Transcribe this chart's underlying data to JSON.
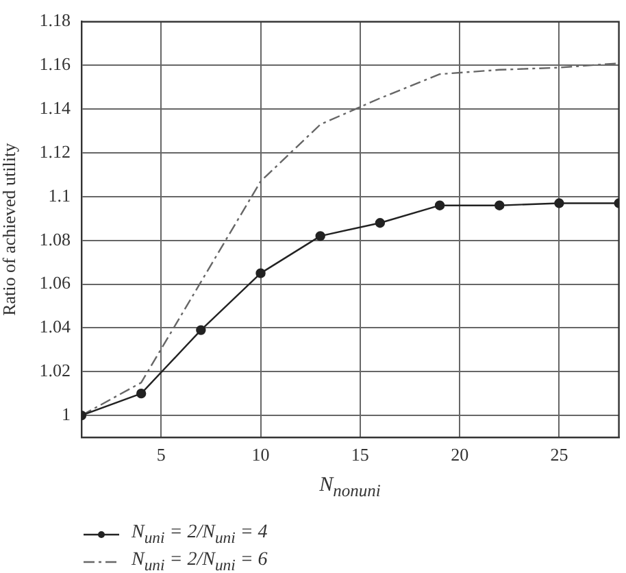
{
  "chart_data": {
    "type": "line",
    "xlabel": "N$_{nonuni}$",
    "ylabel": "Ratio of achieved utility",
    "x": [
      1,
      4,
      7,
      10,
      13,
      16,
      19,
      22,
      25,
      28
    ],
    "series": [
      {
        "name": "N$_{uni}$ = 2/N$_{uni}$ = 4",
        "color": "#222222",
        "marker": "circle",
        "line_style": "solid",
        "values": [
          1.0,
          1.01,
          1.039,
          1.065,
          1.082,
          1.088,
          1.096,
          1.096,
          1.097,
          1.097
        ]
      },
      {
        "name": "N$_{uni}$ = 2/N$_{uni}$ = 6",
        "color": "#666666",
        "marker": "none",
        "line_style": "dashed",
        "values": [
          1.0,
          1.015,
          1.061,
          1.107,
          1.133,
          1.145,
          1.156,
          1.158,
          1.159,
          1.161
        ]
      }
    ],
    "xlim": [
      1,
      28
    ],
    "xticks": [
      5,
      10,
      15,
      20,
      25
    ],
    "ylim": [
      0.99,
      1.18
    ],
    "yticks": [
      1,
      1.02,
      1.04,
      1.06,
      1.08,
      1.1,
      1.12,
      1.14,
      1.16,
      1.18
    ],
    "grid": true,
    "legend": "bottom"
  }
}
